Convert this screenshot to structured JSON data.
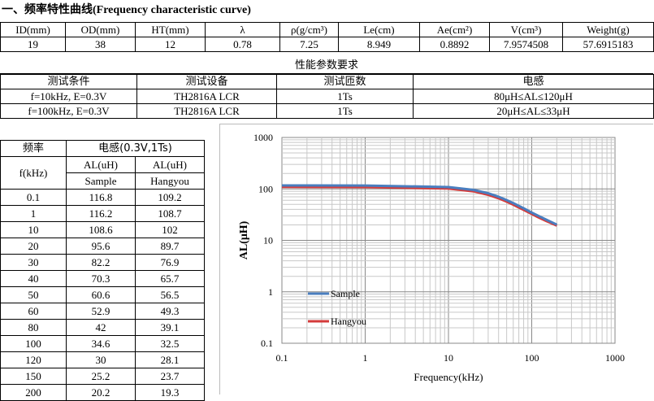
{
  "title": "一、频率特性曲线(Frequency characteristic curve)",
  "spec": {
    "headers": [
      "ID(mm)",
      "OD(mm)",
      "HT(mm)",
      "λ",
      "ρ(g/cm³)",
      "Le(cm)",
      "Ae(cm²)",
      "V(cm³)",
      "Weight(g)"
    ],
    "values": [
      "19",
      "38",
      "12",
      "0.78",
      "7.25",
      "8.949",
      "0.8892",
      "7.9574508",
      "57.6915183"
    ]
  },
  "requirements": {
    "title": "性能参数要求",
    "headers": [
      "测试条件",
      "测试设备",
      "测试匝数",
      "电感"
    ],
    "rows": [
      [
        "f=10kHz, E=0.3V",
        "TH2816A  LCR",
        "1Ts",
        "80μH≤AL≤120μH"
      ],
      [
        "f=100kHz, E=0.3V",
        "TH2816A  LCR",
        "1Ts",
        "20μH≤AL≤33μH"
      ]
    ]
  },
  "table": {
    "col_freq": "频率",
    "col_freq_unit": "f(kHz)",
    "col_ind": "电感(0.3V,1Ts)",
    "sub1": "AL(uH)",
    "sub2": "AL(uH)",
    "sample": "Sample",
    "hangyou": "Hangyou",
    "rows": [
      [
        "0.1",
        "116.8",
        "109.2"
      ],
      [
        "1",
        "116.2",
        "108.7"
      ],
      [
        "10",
        "108.6",
        "102"
      ],
      [
        "20",
        "95.6",
        "89.7"
      ],
      [
        "30",
        "82.2",
        "76.9"
      ],
      [
        "40",
        "70.3",
        "65.7"
      ],
      [
        "50",
        "60.6",
        "56.5"
      ],
      [
        "60",
        "52.9",
        "49.3"
      ],
      [
        "80",
        "42",
        "39.1"
      ],
      [
        "100",
        "34.6",
        "32.5"
      ],
      [
        "120",
        "30",
        "28.1"
      ],
      [
        "150",
        "25.2",
        "23.7"
      ],
      [
        "200",
        "20.2",
        "19.3"
      ]
    ]
  },
  "chart_data": {
    "type": "line",
    "xlabel": "Frequency(kHz)",
    "ylabel": "AL(μH)",
    "xscale": "log",
    "yscale": "log",
    "xlim": [
      0.1,
      1000
    ],
    "ylim": [
      0.1,
      1000
    ],
    "x_ticks": [
      "0.1",
      "1",
      "10",
      "100",
      "1000"
    ],
    "y_ticks": [
      "0.1",
      "1",
      "10",
      "100",
      "1000"
    ],
    "grid": true,
    "legend": "inside-left",
    "x": [
      0.1,
      1,
      10,
      20,
      30,
      40,
      50,
      60,
      80,
      100,
      120,
      150,
      200
    ],
    "series": [
      {
        "name": "Sample",
        "color": "#4a7ebf",
        "values": [
          116.8,
          116.2,
          108.6,
          95.6,
          82.2,
          70.3,
          60.6,
          52.9,
          42,
          34.6,
          30,
          25.2,
          20.2
        ]
      },
      {
        "name": "Hangyou",
        "color": "#d43b3b",
        "values": [
          109.2,
          108.7,
          102,
          89.7,
          76.9,
          65.7,
          56.5,
          49.3,
          39.1,
          32.5,
          28.1,
          23.7,
          19.3
        ]
      }
    ]
  }
}
